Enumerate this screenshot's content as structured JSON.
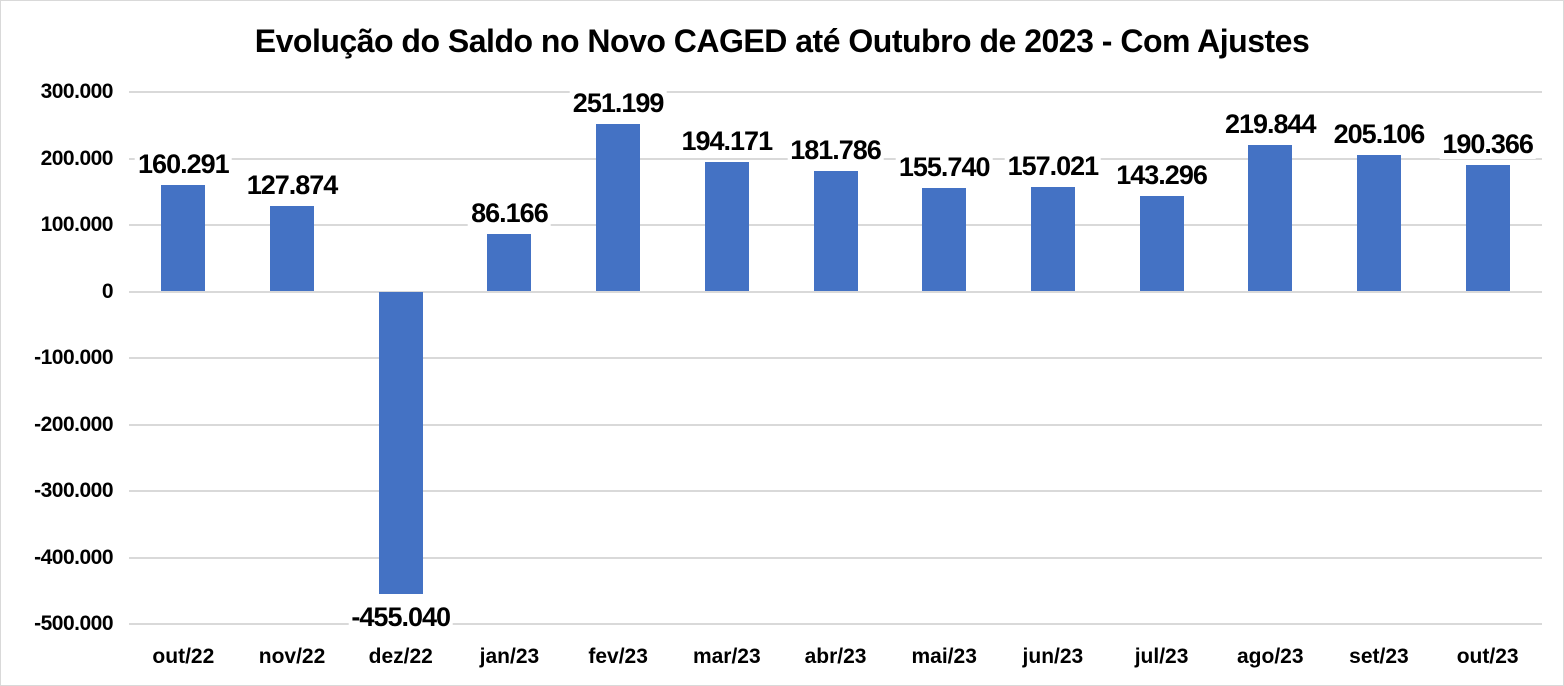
{
  "chart_data": {
    "type": "bar",
    "title": "Evolução do Saldo no Novo CAGED até Outubro de 2023 - Com Ajustes",
    "categories": [
      "out/22",
      "nov/22",
      "dez/22",
      "jan/23",
      "fev/23",
      "mar/23",
      "abr/23",
      "mai/23",
      "jun/23",
      "jul/23",
      "ago/23",
      "set/23",
      "out/23"
    ],
    "values": [
      160291,
      127874,
      -455040,
      86166,
      251199,
      194171,
      181786,
      155740,
      157021,
      143296,
      219844,
      205106,
      190366
    ],
    "value_labels": [
      "160.291",
      "127.874",
      "-455.040",
      "86.166",
      "251.199",
      "194.171",
      "181.786",
      "155.740",
      "157.021",
      "143.296",
      "219.844",
      "205.106",
      "190.366"
    ],
    "xlabel": "",
    "ylabel": "",
    "ylim": [
      -500000,
      300000
    ],
    "y_tick_values": [
      300000,
      200000,
      100000,
      0,
      -100000,
      -200000,
      -300000,
      -400000,
      -500000
    ],
    "y_tick_labels": [
      "300.000",
      "200.000",
      "100.000",
      "0",
      "-100.000",
      "-200.000",
      "-300.000",
      "-400.000",
      "-500.000"
    ],
    "grid": true,
    "legend_position": "none",
    "bar_color": "#4472C4",
    "gridline_color": "#D9D9D9",
    "text_color": "#000000",
    "background_color": "#FFFFFF"
  }
}
